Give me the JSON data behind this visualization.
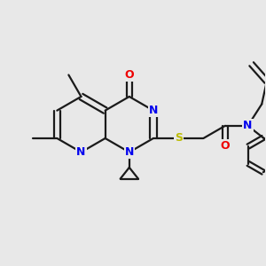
{
  "bg_color": "#e8e8e8",
  "bond_color": "#1a1a1a",
  "N_color": "#0000ee",
  "O_color": "#ee0000",
  "S_color": "#bbbb00",
  "lw": 1.6,
  "dbo": 0.12,
  "figsize": [
    3.0,
    3.0
  ],
  "dpi": 100,
  "xlim": [
    0.0,
    10.0
  ],
  "ylim": [
    1.5,
    9.5
  ]
}
